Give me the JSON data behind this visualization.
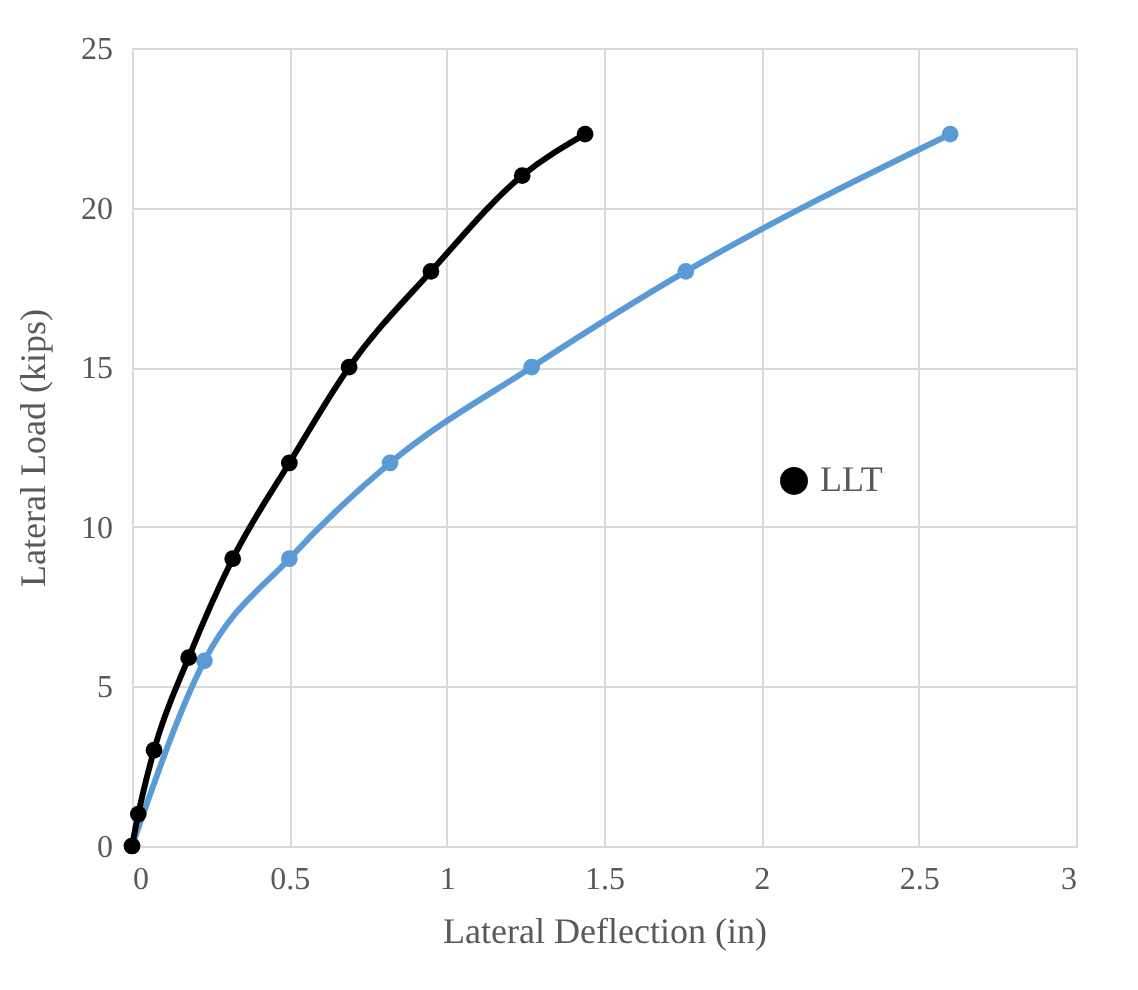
{
  "chart_data": {
    "type": "line",
    "xlabel": "Lateral Deflection (in)",
    "ylabel": "Lateral Load (kips)",
    "xlim": [
      0,
      3
    ],
    "xticks": [
      0,
      0.5,
      1,
      1.5,
      2,
      2.5,
      3
    ],
    "ylim": [
      0,
      25
    ],
    "yticks": [
      0,
      5,
      10,
      15,
      20,
      25
    ],
    "grid": true,
    "legend": "right",
    "marker": "circle",
    "series": [
      {
        "color": "#5b9bd5",
        "x": [
          0,
          0.23,
          0.5,
          0.82,
          1.27,
          1.76,
          2.6
        ],
        "values": [
          0,
          5.8,
          9,
          12,
          15,
          18,
          22.3
        ]
      },
      {
        "name": "LLT",
        "color": "#000000",
        "x": [
          0,
          0.02,
          0.07,
          0.18,
          0.32,
          0.5,
          0.69,
          0.95,
          1.24,
          1.44
        ],
        "values": [
          0,
          1,
          3,
          5.9,
          9,
          12,
          15,
          18,
          21,
          22.3
        ]
      }
    ]
  }
}
